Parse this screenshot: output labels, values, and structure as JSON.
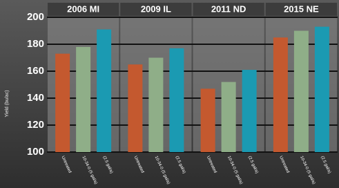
{
  "chart_data": {
    "type": "bar",
    "y_label": "Yield (bu/ac)",
    "categories": [
      "2006 MI",
      "2009 IL",
      "2011 ND",
      "2015 NE"
    ],
    "series": [
      {
        "name": "Untreated",
        "color": "#c4592f",
        "values": [
          173,
          165,
          147,
          185
        ]
      },
      {
        "name": "10-34-0 (5 gal/a)",
        "color": "#8fae88",
        "values": [
          178,
          170,
          152,
          190
        ]
      },
      {
        "name": "(2.5 gal/a)",
        "color": "#1b9ab2",
        "values": [
          191,
          177,
          161,
          193
        ]
      }
    ],
    "ylim": [
      100,
      200
    ],
    "yticks": [
      100,
      120,
      140,
      160,
      180,
      200
    ],
    "grid": true
  }
}
